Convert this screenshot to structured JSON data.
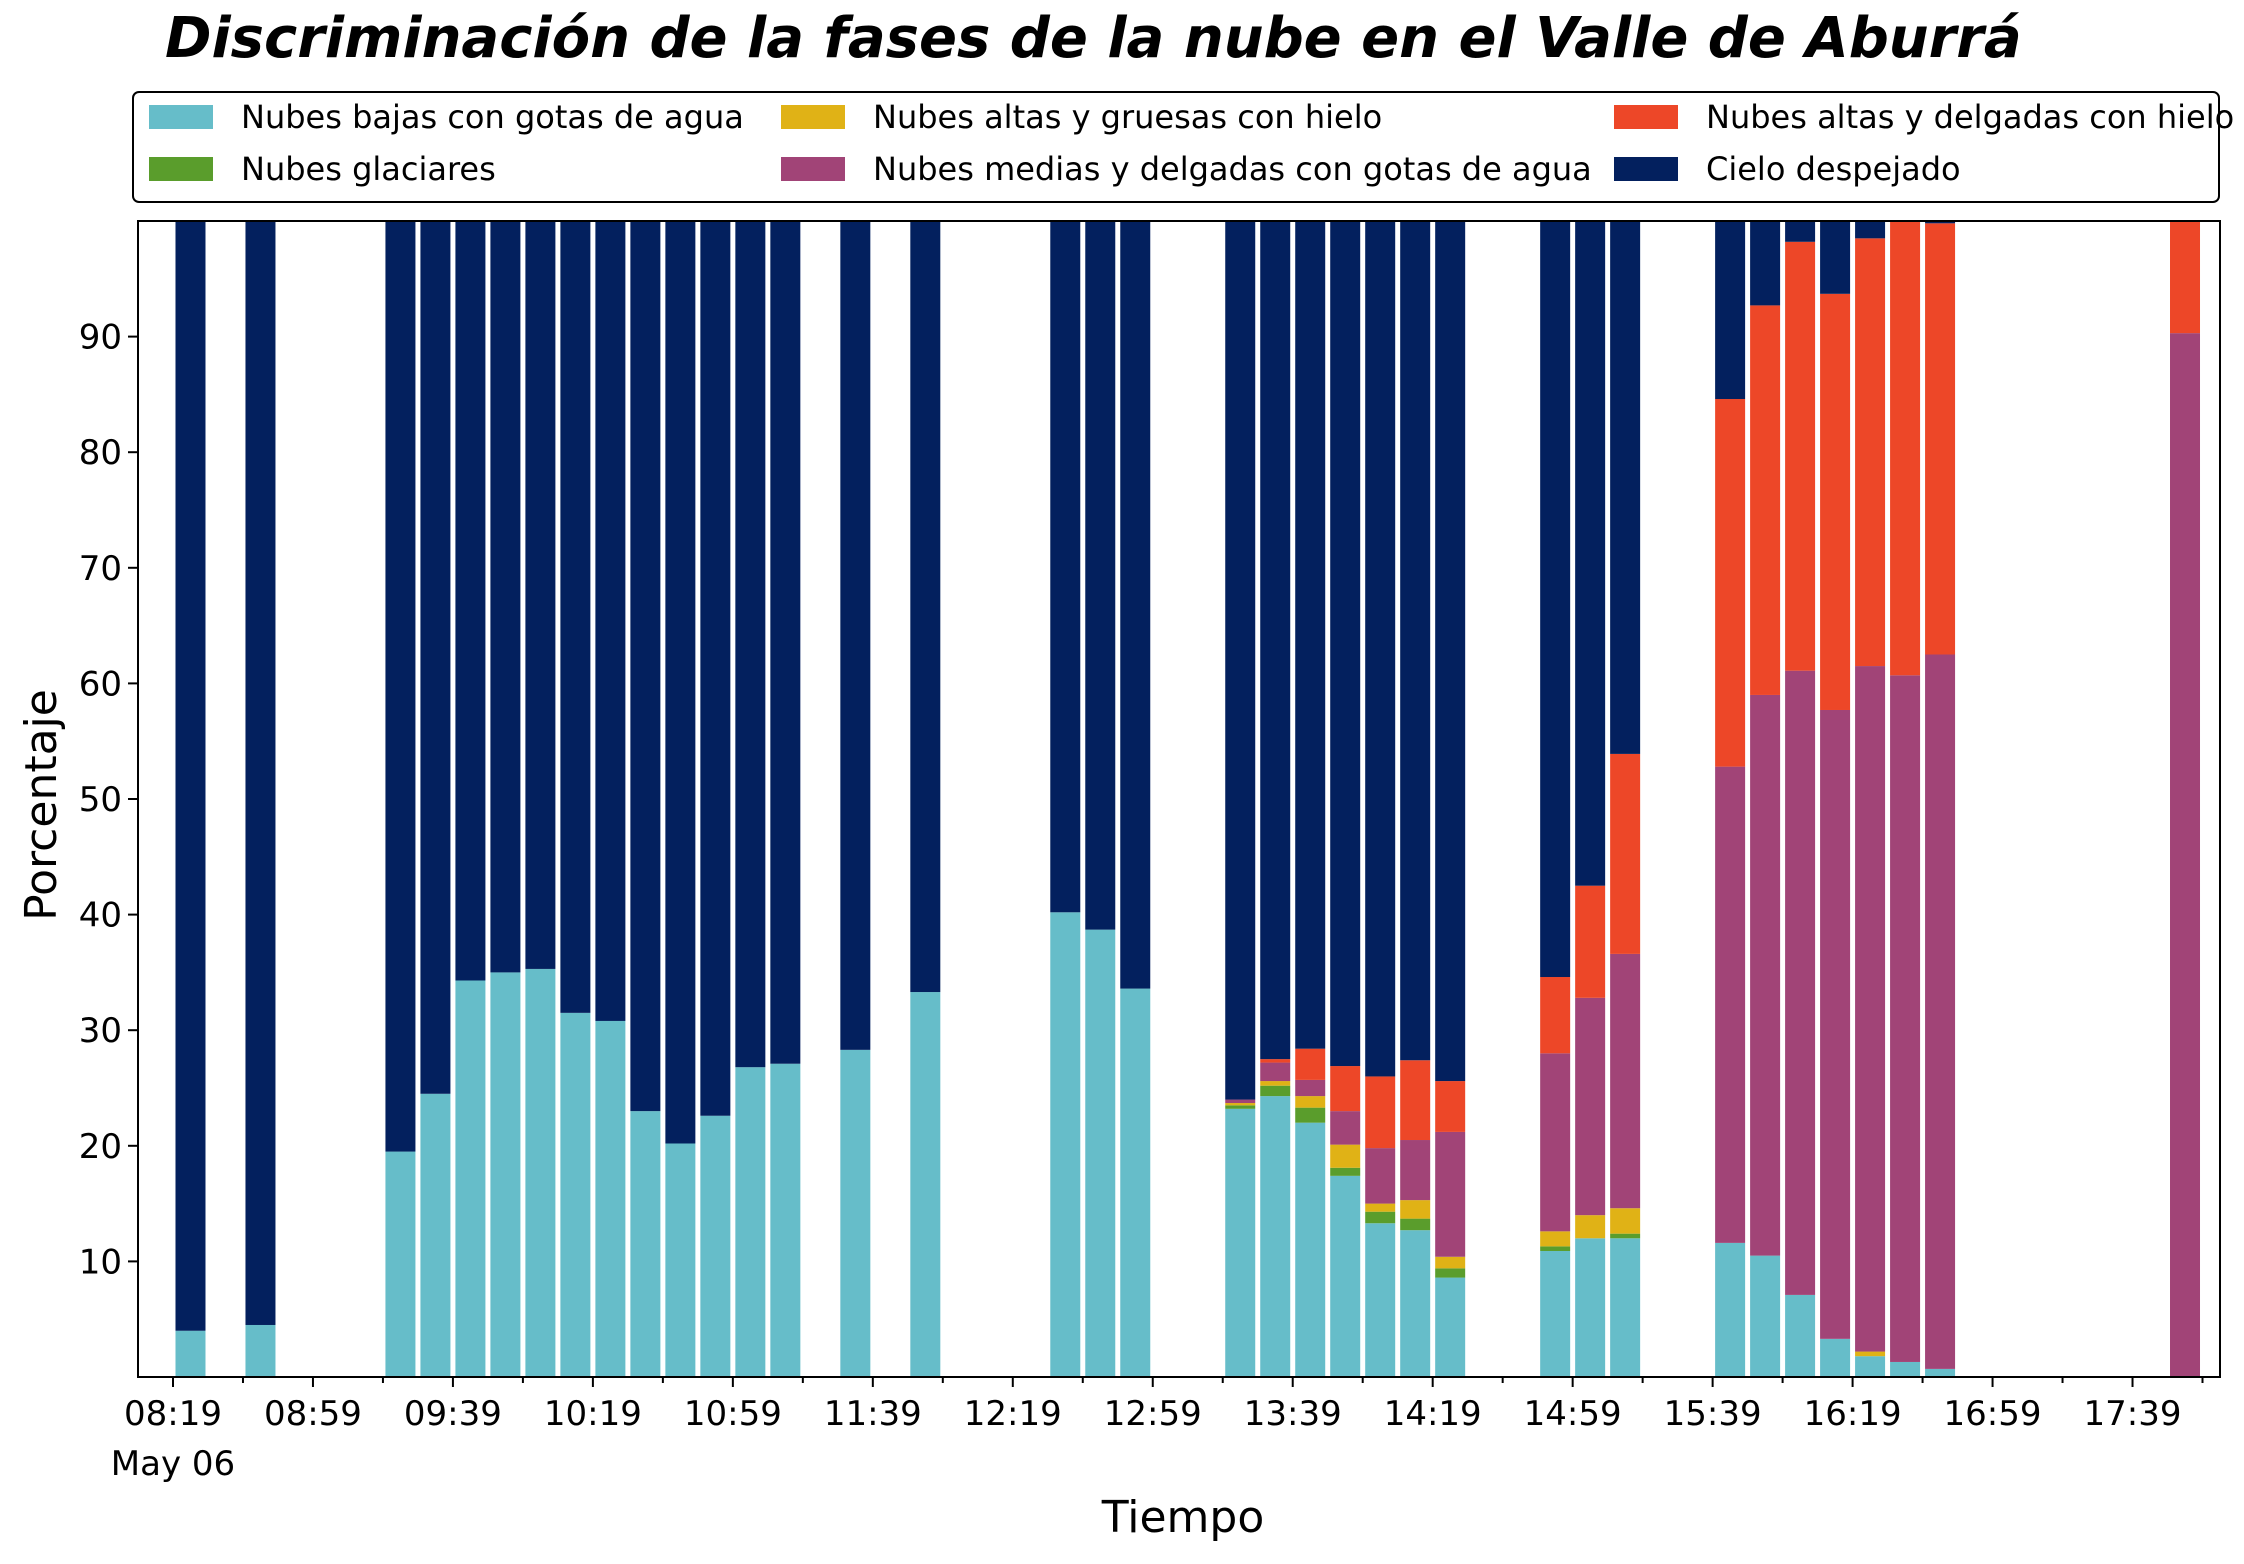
{
  "chart_data": {
    "type": "bar",
    "stacked": true,
    "title": "Discriminación de la fases de la nube en el Valle de Aburrá",
    "xlabel": "Tiempo",
    "ylabel": "Porcentaje",
    "ylim": [
      0,
      100
    ],
    "yticks": [
      10,
      20,
      30,
      40,
      50,
      60,
      70,
      80,
      90
    ],
    "grid": false,
    "legend": {
      "placement": "top",
      "columns": 3
    },
    "x_range": [
      "08:09",
      "18:04"
    ],
    "xtick_labels": [
      "08:19",
      "08:59",
      "09:39",
      "10:19",
      "10:59",
      "11:39",
      "12:19",
      "12:59",
      "13:39",
      "14:19",
      "14:59",
      "15:39",
      "16:19",
      "16:59",
      "17:39"
    ],
    "xtick_date_label": "May 06",
    "bar_interval_minutes": 10,
    "x": [
      "08:24",
      "08:44",
      "09:24",
      "09:34",
      "09:44",
      "09:54",
      "10:04",
      "10:14",
      "10:24",
      "10:34",
      "10:44",
      "10:54",
      "11:04",
      "11:14",
      "11:34",
      "11:54",
      "12:34",
      "12:44",
      "12:54",
      "13:24",
      "13:34",
      "13:44",
      "13:54",
      "14:04",
      "14:14",
      "14:24",
      "14:54",
      "15:04",
      "15:14",
      "15:44",
      "15:54",
      "16:04",
      "16:14",
      "16:24",
      "16:34",
      "16:44",
      "17:54"
    ],
    "series": [
      {
        "name": "Nubes bajas con gotas de agua",
        "color": "#66bdc9",
        "values": [
          4,
          4.5,
          19.5,
          24.5,
          34.3,
          35,
          35.3,
          31.5,
          30.8,
          23,
          20.2,
          22.6,
          26.8,
          27.1,
          28.3,
          33.3,
          40.2,
          38.7,
          33.6,
          23.2,
          24.3,
          22,
          17.4,
          13.3,
          12.7,
          8.6,
          10.9,
          12,
          12,
          11.6,
          10.5,
          7.1,
          3.3,
          1.8,
          1.3,
          0.7,
          0
        ]
      },
      {
        "name": "Nubes glaciares",
        "color": "#5a9d2c",
        "values": [
          0,
          0,
          0,
          0,
          0,
          0,
          0,
          0,
          0,
          0,
          0,
          0,
          0,
          0,
          0,
          0,
          0,
          0,
          0,
          0.3,
          0.9,
          1.3,
          0.7,
          1,
          1,
          0.8,
          0.4,
          0,
          0.4,
          0,
          0,
          0,
          0,
          0,
          0,
          0,
          0
        ]
      },
      {
        "name": "Nubes altas y gruesas con hielo",
        "color": "#e0b216",
        "values": [
          0,
          0,
          0,
          0,
          0,
          0,
          0,
          0,
          0,
          0,
          0,
          0,
          0,
          0,
          0,
          0,
          0,
          0,
          0,
          0.2,
          0.4,
          1,
          2,
          0.7,
          1.6,
          1,
          1.3,
          2,
          2.2,
          0,
          0,
          0,
          0,
          0.4,
          0,
          0,
          0
        ]
      },
      {
        "name": "Nubes medias y delgadas con gotas de agua",
        "color": "#a14477",
        "values": [
          0,
          0,
          0,
          0,
          0,
          0,
          0,
          0,
          0,
          0,
          0,
          0,
          0,
          0,
          0,
          0,
          0,
          0,
          0,
          0.3,
          1.6,
          1.4,
          2.9,
          4.8,
          5.2,
          10.8,
          15.4,
          18.8,
          22,
          41.2,
          48.5,
          54,
          54.4,
          59.3,
          59.4,
          61.8,
          90.3
        ]
      },
      {
        "name": "Nubes altas y delgadas con hielo",
        "color": "#ed4728",
        "values": [
          0,
          0,
          0,
          0,
          0,
          0,
          0,
          0,
          0,
          0,
          0,
          0,
          0,
          0,
          0,
          0,
          0,
          0,
          0,
          0,
          0.3,
          2.7,
          3.9,
          6.2,
          6.9,
          4.4,
          6.6,
          9.7,
          17.3,
          31.8,
          33.7,
          37.1,
          36,
          37,
          39.3,
          37.3,
          9.7
        ]
      },
      {
        "name": "Cielo despejado",
        "color": "#03205e",
        "values": [
          96,
          95.5,
          80.5,
          75.5,
          65.7,
          65,
          64.7,
          68.5,
          69.2,
          77,
          79.8,
          77.4,
          73.2,
          72.9,
          71.7,
          66.7,
          59.8,
          61.3,
          66.4,
          76,
          72.5,
          71.6,
          73.1,
          74,
          72.6,
          74.4,
          65.4,
          57.5,
          46.1,
          15.4,
          7.3,
          1.8,
          6.3,
          1.5,
          0,
          0.2,
          0
        ]
      }
    ]
  }
}
